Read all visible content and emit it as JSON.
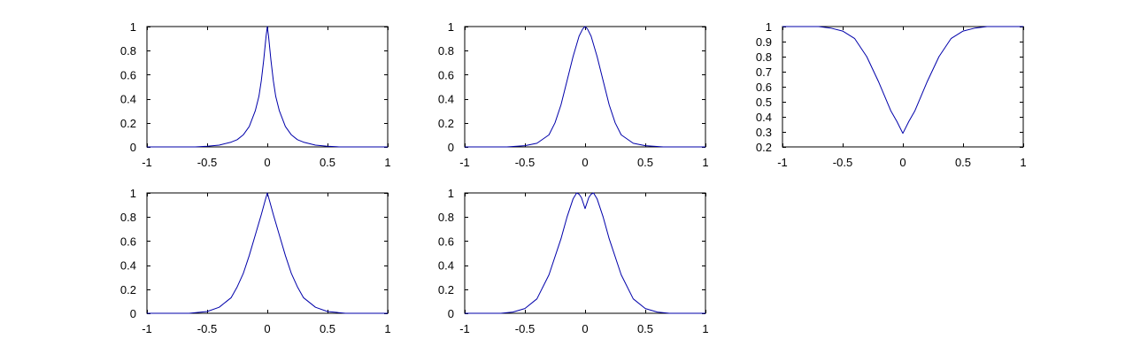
{
  "chart_data": [
    {
      "type": "line",
      "title": "",
      "xlabel": "",
      "ylabel": "",
      "xlim": [
        -1,
        1
      ],
      "ylim": [
        0,
        1
      ],
      "xticks": [
        -1,
        -0.5,
        0,
        0.5,
        1
      ],
      "xtick_labels": [
        "-1",
        "-0.5",
        "0",
        "0.5",
        "1"
      ],
      "yticks": [
        0,
        0.2,
        0.4,
        0.6,
        0.8,
        1
      ],
      "ytick_labels": [
        "0",
        "0.2",
        "0.4",
        "0.6",
        "0.8",
        "1"
      ],
      "grid": false,
      "line_color": "#0000aa",
      "series": [
        {
          "x": [
            -1,
            -0.6,
            -0.5,
            -0.4,
            -0.3,
            -0.25,
            -0.2,
            -0.15,
            -0.1,
            -0.07,
            -0.05,
            -0.03,
            -0.01,
            0,
            0.01,
            0.03,
            0.05,
            0.07,
            0.1,
            0.15,
            0.2,
            0.25,
            0.3,
            0.4,
            0.5,
            0.6,
            1
          ],
          "y": [
            0,
            0,
            0.005,
            0.015,
            0.04,
            0.06,
            0.1,
            0.17,
            0.3,
            0.42,
            0.55,
            0.72,
            0.92,
            1,
            0.92,
            0.72,
            0.55,
            0.42,
            0.3,
            0.17,
            0.1,
            0.06,
            0.04,
            0.015,
            0.005,
            0,
            0
          ]
        }
      ]
    },
    {
      "type": "line",
      "title": "",
      "xlabel": "",
      "ylabel": "",
      "xlim": [
        -1,
        1
      ],
      "ylim": [
        0,
        1
      ],
      "xticks": [
        -1,
        -0.5,
        0,
        0.5,
        1
      ],
      "xtick_labels": [
        "-1",
        "-0.5",
        "0",
        "0.5",
        "1"
      ],
      "yticks": [
        0,
        0.2,
        0.4,
        0.6,
        0.8,
        1
      ],
      "ytick_labels": [
        "0",
        "0.2",
        "0.4",
        "0.6",
        "0.8",
        "1"
      ],
      "grid": false,
      "line_color": "#0000aa",
      "series": [
        {
          "x": [
            -1,
            -0.65,
            -0.5,
            -0.4,
            -0.3,
            -0.25,
            -0.2,
            -0.15,
            -0.1,
            -0.05,
            -0.02,
            0,
            0.02,
            0.05,
            0.1,
            0.15,
            0.2,
            0.25,
            0.3,
            0.4,
            0.5,
            0.65,
            1
          ],
          "y": [
            0,
            0,
            0.01,
            0.03,
            0.1,
            0.2,
            0.35,
            0.55,
            0.75,
            0.92,
            0.98,
            1,
            0.98,
            0.92,
            0.75,
            0.55,
            0.35,
            0.2,
            0.1,
            0.03,
            0.01,
            0,
            0
          ]
        }
      ]
    },
    {
      "type": "line",
      "title": "",
      "xlabel": "",
      "ylabel": "",
      "xlim": [
        -1,
        1
      ],
      "ylim": [
        0.2,
        1
      ],
      "xticks": [
        -1,
        -0.5,
        0,
        0.5,
        1
      ],
      "xtick_labels": [
        "-1",
        "-0.5",
        "0",
        "0.5",
        "1"
      ],
      "yticks": [
        0.2,
        0.3,
        0.4,
        0.5,
        0.6,
        0.7,
        0.8,
        0.9,
        1
      ],
      "ytick_labels": [
        "0.2",
        "0.3",
        "0.4",
        "0.5",
        "0.6",
        "0.7",
        "0.8",
        "0.9",
        "1"
      ],
      "grid": false,
      "line_color": "#0000aa",
      "series": [
        {
          "x": [
            -1,
            -0.7,
            -0.6,
            -0.5,
            -0.4,
            -0.3,
            -0.2,
            -0.1,
            -0.05,
            0,
            0.05,
            0.1,
            0.2,
            0.3,
            0.4,
            0.5,
            0.6,
            0.7,
            1
          ],
          "y": [
            1,
            1,
            0.99,
            0.97,
            0.92,
            0.8,
            0.63,
            0.44,
            0.37,
            0.29,
            0.37,
            0.44,
            0.63,
            0.8,
            0.92,
            0.97,
            0.99,
            1,
            1
          ]
        }
      ]
    },
    {
      "type": "line",
      "title": "",
      "xlabel": "",
      "ylabel": "",
      "xlim": [
        -1,
        1
      ],
      "ylim": [
        0,
        1
      ],
      "xticks": [
        -1,
        -0.5,
        0,
        0.5,
        1
      ],
      "xtick_labels": [
        "-1",
        "-0.5",
        "0",
        "0.5",
        "1"
      ],
      "yticks": [
        0,
        0.2,
        0.4,
        0.6,
        0.8,
        1
      ],
      "ytick_labels": [
        "0",
        "0.2",
        "0.4",
        "0.6",
        "0.8",
        "1"
      ],
      "grid": false,
      "line_color": "#0000aa",
      "series": [
        {
          "x": [
            -1,
            -0.65,
            -0.5,
            -0.4,
            -0.3,
            -0.25,
            -0.2,
            -0.15,
            -0.1,
            -0.05,
            -0.02,
            0,
            0.02,
            0.05,
            0.1,
            0.15,
            0.2,
            0.25,
            0.3,
            0.4,
            0.5,
            0.65,
            1
          ],
          "y": [
            0,
            0,
            0.015,
            0.05,
            0.13,
            0.22,
            0.33,
            0.48,
            0.65,
            0.82,
            0.93,
            1,
            0.93,
            0.82,
            0.65,
            0.48,
            0.33,
            0.22,
            0.13,
            0.05,
            0.015,
            0,
            0
          ]
        }
      ]
    },
    {
      "type": "line",
      "title": "",
      "xlabel": "",
      "ylabel": "",
      "xlim": [
        -1,
        1
      ],
      "ylim": [
        0,
        1
      ],
      "xticks": [
        -1,
        -0.5,
        0,
        0.5,
        1
      ],
      "xtick_labels": [
        "-1",
        "-0.5",
        "0",
        "0.5",
        "1"
      ],
      "yticks": [
        0,
        0.2,
        0.4,
        0.6,
        0.8,
        1
      ],
      "ytick_labels": [
        "0",
        "0.2",
        "0.4",
        "0.6",
        "0.8",
        "1"
      ],
      "grid": false,
      "line_color": "#0000aa",
      "series": [
        {
          "x": [
            -1,
            -0.7,
            -0.6,
            -0.5,
            -0.4,
            -0.3,
            -0.2,
            -0.15,
            -0.1,
            -0.07,
            -0.05,
            -0.03,
            0,
            0.03,
            0.05,
            0.07,
            0.1,
            0.15,
            0.2,
            0.3,
            0.4,
            0.5,
            0.6,
            0.7,
            1
          ],
          "y": [
            0,
            0,
            0.01,
            0.04,
            0.12,
            0.32,
            0.62,
            0.8,
            0.95,
            1,
            0.99,
            0.96,
            0.87,
            0.96,
            0.99,
            1,
            0.95,
            0.8,
            0.62,
            0.32,
            0.12,
            0.04,
            0.01,
            0,
            0
          ]
        }
      ]
    }
  ]
}
